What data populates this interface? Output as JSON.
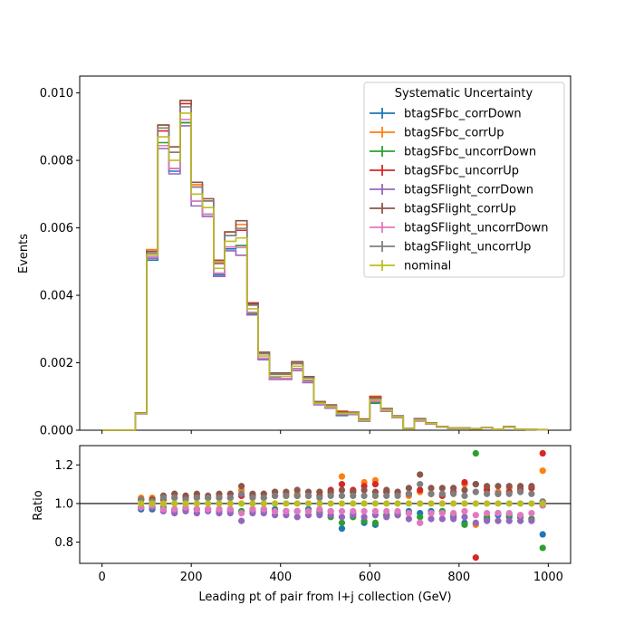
{
  "chart_data": [
    {
      "type": "line",
      "panel": "main",
      "xlabel": "",
      "ylabel": "Events",
      "xlim": [
        -50,
        1050
      ],
      "ylim": [
        0,
        0.0105
      ],
      "yticks": [
        0.0,
        0.002,
        0.004,
        0.006,
        0.008,
        0.01
      ],
      "ytick_labels": [
        "0.000",
        "0.002",
        "0.004",
        "0.006",
        "0.008",
        "0.010"
      ],
      "xticks": [
        0,
        200,
        400,
        600,
        800,
        1000
      ],
      "legend": {
        "title": "Systematic Uncertainty",
        "position": "top-right"
      },
      "bin_edges": [
        0,
        25,
        50,
        75,
        100,
        125,
        150,
        175,
        200,
        225,
        250,
        275,
        300,
        325,
        350,
        375,
        400,
        425,
        450,
        475,
        500,
        525,
        550,
        575,
        600,
        625,
        650,
        675,
        700,
        725,
        750,
        775,
        800,
        825,
        850,
        875,
        900,
        925,
        950,
        975,
        1000
      ],
      "series": [
        {
          "name": "btagSFbc_corrDown",
          "color": "#1f77b4",
          "scale": [
            1,
            1,
            1,
            0.97,
            0.97,
            0.97,
            0.96,
            0.97,
            0.97,
            0.97,
            0.96,
            0.96,
            0.96,
            0.97,
            0.96,
            0.97,
            0.96,
            0.96,
            0.97,
            0.95,
            0.96,
            0.87,
            0.95,
            0.9,
            0.89,
            0.94,
            0.95,
            0.96,
            0.95,
            0.96,
            0.96,
            0.93,
            0.9,
            1.1,
            0.92,
            0.94,
            0.93,
            0.93,
            0.92,
            0.84
          ]
        },
        {
          "name": "btagSFbc_corrUp",
          "color": "#ff7f0e",
          "scale": [
            1,
            1,
            1,
            1.03,
            1.03,
            1.04,
            1.05,
            1.04,
            1.04,
            1.03,
            1.04,
            1.05,
            1.07,
            1.04,
            1.05,
            1.06,
            1.05,
            1.05,
            1.04,
            1.06,
            1.05,
            1.14,
            1.06,
            1.11,
            1.12,
            1.06,
            1.05,
            1.04,
            1.06,
            1.05,
            1.05,
            1.08,
            1.1,
            0.89,
            1.08,
            1.06,
            1.08,
            1.08,
            1.08,
            1.17
          ]
        },
        {
          "name": "btagSFbc_uncorrDown",
          "color": "#2ca02c",
          "scale": [
            1,
            1,
            1,
            0.98,
            0.98,
            0.98,
            0.97,
            0.97,
            0.97,
            0.97,
            0.97,
            0.97,
            0.96,
            0.96,
            0.97,
            0.96,
            0.96,
            0.96,
            0.96,
            0.96,
            0.93,
            0.9,
            0.93,
            0.91,
            0.9,
            0.94,
            0.94,
            0.95,
            0.93,
            0.95,
            0.96,
            0.94,
            0.89,
            1.26,
            0.93,
            0.95,
            0.94,
            0.93,
            0.92,
            0.77
          ]
        },
        {
          "name": "btagSFbc_uncorrUp",
          "color": "#d62728",
          "scale": [
            1,
            1,
            1,
            1.02,
            1.02,
            1.02,
            1.03,
            1.03,
            1.03,
            1.03,
            1.03,
            1.03,
            1.04,
            1.04,
            1.03,
            1.04,
            1.04,
            1.04,
            1.04,
            1.04,
            1.07,
            1.1,
            1.07,
            1.09,
            1.1,
            1.06,
            1.06,
            1.05,
            1.07,
            1.05,
            1.04,
            1.06,
            1.11,
            0.72,
            1.07,
            1.05,
            1.06,
            1.07,
            1.08,
            1.26
          ]
        },
        {
          "name": "btagSFlight_corrDown",
          "color": "#9467bd",
          "scale": [
            1,
            1,
            1,
            0.98,
            0.98,
            0.96,
            0.95,
            0.96,
            0.95,
            0.96,
            0.95,
            0.95,
            0.91,
            0.95,
            0.95,
            0.94,
            0.94,
            0.93,
            0.94,
            0.94,
            0.94,
            0.93,
            0.94,
            0.93,
            0.94,
            0.93,
            0.94,
            0.92,
            0.9,
            0.92,
            0.92,
            0.92,
            0.93,
            0.9,
            0.91,
            0.91,
            0.91,
            0.91,
            0.91,
            0.99
          ]
        },
        {
          "name": "btagSFlight_corrUp",
          "color": "#8c564b",
          "scale": [
            1,
            1,
            1,
            1.02,
            1.02,
            1.04,
            1.05,
            1.04,
            1.05,
            1.04,
            1.05,
            1.05,
            1.09,
            1.05,
            1.05,
            1.06,
            1.06,
            1.07,
            1.06,
            1.06,
            1.06,
            1.07,
            1.06,
            1.07,
            1.06,
            1.07,
            1.06,
            1.08,
            1.15,
            1.08,
            1.08,
            1.08,
            1.07,
            1.1,
            1.09,
            1.09,
            1.09,
            1.09,
            1.09,
            1.01
          ]
        },
        {
          "name": "btagSFlight_uncorrDown",
          "color": "#e377c2",
          "scale": [
            1,
            1,
            1,
            0.98,
            0.99,
            0.97,
            0.97,
            0.98,
            0.97,
            0.97,
            0.97,
            0.97,
            0.95,
            0.97,
            0.97,
            0.96,
            0.96,
            0.96,
            0.96,
            0.97,
            0.96,
            0.96,
            0.96,
            0.96,
            0.96,
            0.96,
            0.96,
            0.95,
            0.9,
            0.95,
            0.95,
            0.95,
            0.96,
            0.94,
            0.95,
            0.95,
            0.95,
            0.94,
            0.95,
            0.99
          ]
        },
        {
          "name": "btagSFlight_uncorrUp",
          "color": "#7f7f7f",
          "scale": [
            1,
            1,
            1,
            1.02,
            1.01,
            1.03,
            1.03,
            1.02,
            1.03,
            1.03,
            1.03,
            1.03,
            1.05,
            1.03,
            1.03,
            1.04,
            1.04,
            1.04,
            1.04,
            1.03,
            1.04,
            1.04,
            1.04,
            1.04,
            1.04,
            1.04,
            1.04,
            1.05,
            1.1,
            1.05,
            1.05,
            1.05,
            1.04,
            1.06,
            1.05,
            1.05,
            1.05,
            1.06,
            1.05,
            1.01
          ]
        },
        {
          "name": "nominal",
          "color": "#bcbd22",
          "scale": [
            1,
            1,
            1,
            1,
            1,
            1,
            1,
            1,
            1,
            1,
            1,
            1,
            1,
            1,
            1,
            1,
            1,
            1,
            1,
            1,
            1,
            1,
            1,
            1,
            1,
            1,
            1,
            1,
            1,
            1,
            1,
            1,
            1,
            1,
            1,
            1,
            1,
            1,
            1,
            1
          ]
        }
      ],
      "nominal_values": [
        0,
        0,
        0,
        0.0005,
        0.0052,
        0.0087,
        0.008,
        0.0094,
        0.007,
        0.0066,
        0.0048,
        0.0056,
        0.0057,
        0.0036,
        0.0022,
        0.0016,
        0.0016,
        0.0019,
        0.0015,
        0.0008,
        0.0007,
        0.0005,
        0.0005,
        0.0003,
        0.0009,
        0.0006,
        0.0004,
        5e-05,
        0.0003,
        0.0002,
        0.0001,
        6e-05,
        6e-05,
        4e-05,
        8e-05,
        3e-05,
        0.0001,
        3e-05,
        2e-05,
        1e-05
      ]
    },
    {
      "type": "scatter",
      "panel": "ratio",
      "xlabel": "Leading pt of pair from l+j collection (GeV)",
      "ylabel": "Ratio",
      "xlim": [
        -50,
        1050
      ],
      "ylim": [
        0.69,
        1.3
      ],
      "yticks": [
        0.8,
        1.0,
        1.2
      ],
      "ytick_labels": [
        "0.8",
        "1.0",
        "1.2"
      ],
      "xticks": [
        0,
        200,
        400,
        600,
        800,
        1000
      ],
      "xtick_labels": [
        "0",
        "200",
        "400",
        "600",
        "800",
        "1000"
      ],
      "reference_line": 1.0,
      "first_bin_plotted": 3
    }
  ]
}
